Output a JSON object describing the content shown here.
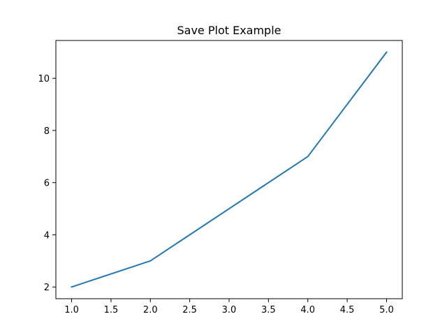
{
  "chart_data": {
    "type": "line",
    "title": "Save Plot Example",
    "xlabel": "",
    "ylabel": "",
    "xlim": [
      0.8,
      5.2
    ],
    "ylim": [
      1.55,
      11.45
    ],
    "x_ticks": [
      1.0,
      1.5,
      2.0,
      2.5,
      3.0,
      3.5,
      4.0,
      4.5,
      5.0
    ],
    "x_tick_labels": [
      "1.0",
      "1.5",
      "2.0",
      "2.5",
      "3.0",
      "3.5",
      "4.0",
      "4.5",
      "5.0"
    ],
    "y_ticks": [
      2,
      4,
      6,
      8,
      10
    ],
    "y_tick_labels": [
      "2",
      "4",
      "6",
      "8",
      "10"
    ],
    "grid": false,
    "legend": "none",
    "series": [
      {
        "x": [
          1,
          2,
          3,
          4,
          5
        ],
        "values": [
          2,
          3,
          5,
          7,
          11
        ],
        "color": "#1f77b4"
      }
    ]
  }
}
